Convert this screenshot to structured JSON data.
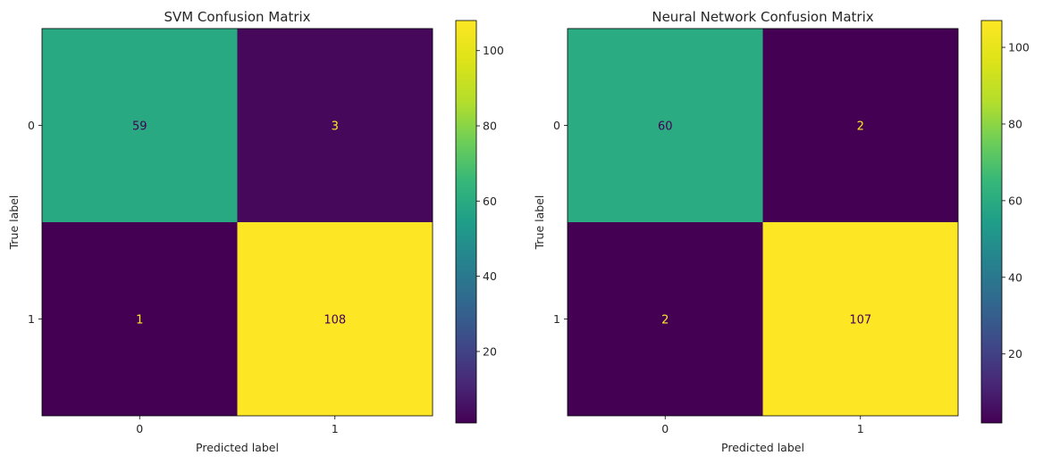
{
  "chart_data": [
    {
      "type": "heatmap",
      "title": "SVM Confusion Matrix",
      "xlabel": "Predicted label",
      "ylabel": "True label",
      "x_tick_labels": [
        "0",
        "1"
      ],
      "y_tick_labels": [
        "0",
        "1"
      ],
      "matrix": [
        [
          59,
          3
        ],
        [
          1,
          108
        ]
      ],
      "colorbar": {
        "range": [
          1,
          108
        ],
        "ticks": [
          "20",
          "40",
          "60",
          "80",
          "100"
        ],
        "colormap": "viridis"
      }
    },
    {
      "type": "heatmap",
      "title": "Neural Network Confusion Matrix",
      "xlabel": "Predicted label",
      "ylabel": "True label",
      "x_tick_labels": [
        "0",
        "1"
      ],
      "y_tick_labels": [
        "0",
        "1"
      ],
      "matrix": [
        [
          60,
          2
        ],
        [
          2,
          107
        ]
      ],
      "colorbar": {
        "range": [
          2,
          107
        ],
        "ticks": [
          "20",
          "40",
          "60",
          "80",
          "100"
        ],
        "colormap": "viridis"
      }
    }
  ],
  "colors": {
    "text_on_dark": "#fde725",
    "text_on_light": "#440154",
    "axis": "#000000"
  }
}
